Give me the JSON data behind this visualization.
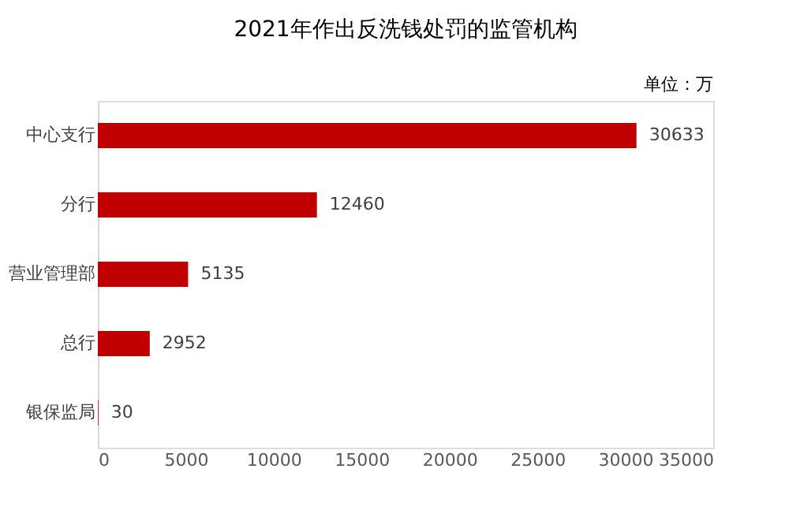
{
  "chart_data": {
    "type": "bar",
    "orientation": "horizontal",
    "title": "2021年作出反洗钱处罚的监管机构",
    "annotations": [
      "单位：万"
    ],
    "categories": [
      "中心支行",
      "分行",
      "营业管理部",
      "总行",
      "银保监局"
    ],
    "values": [
      30633,
      12460,
      5135,
      2952,
      30
    ],
    "color": "#c00000",
    "xlim": [
      0,
      35000
    ],
    "xticks": [
      0,
      5000,
      10000,
      15000,
      20000,
      25000,
      30000,
      35000
    ],
    "data_labels": true,
    "grid": false
  }
}
